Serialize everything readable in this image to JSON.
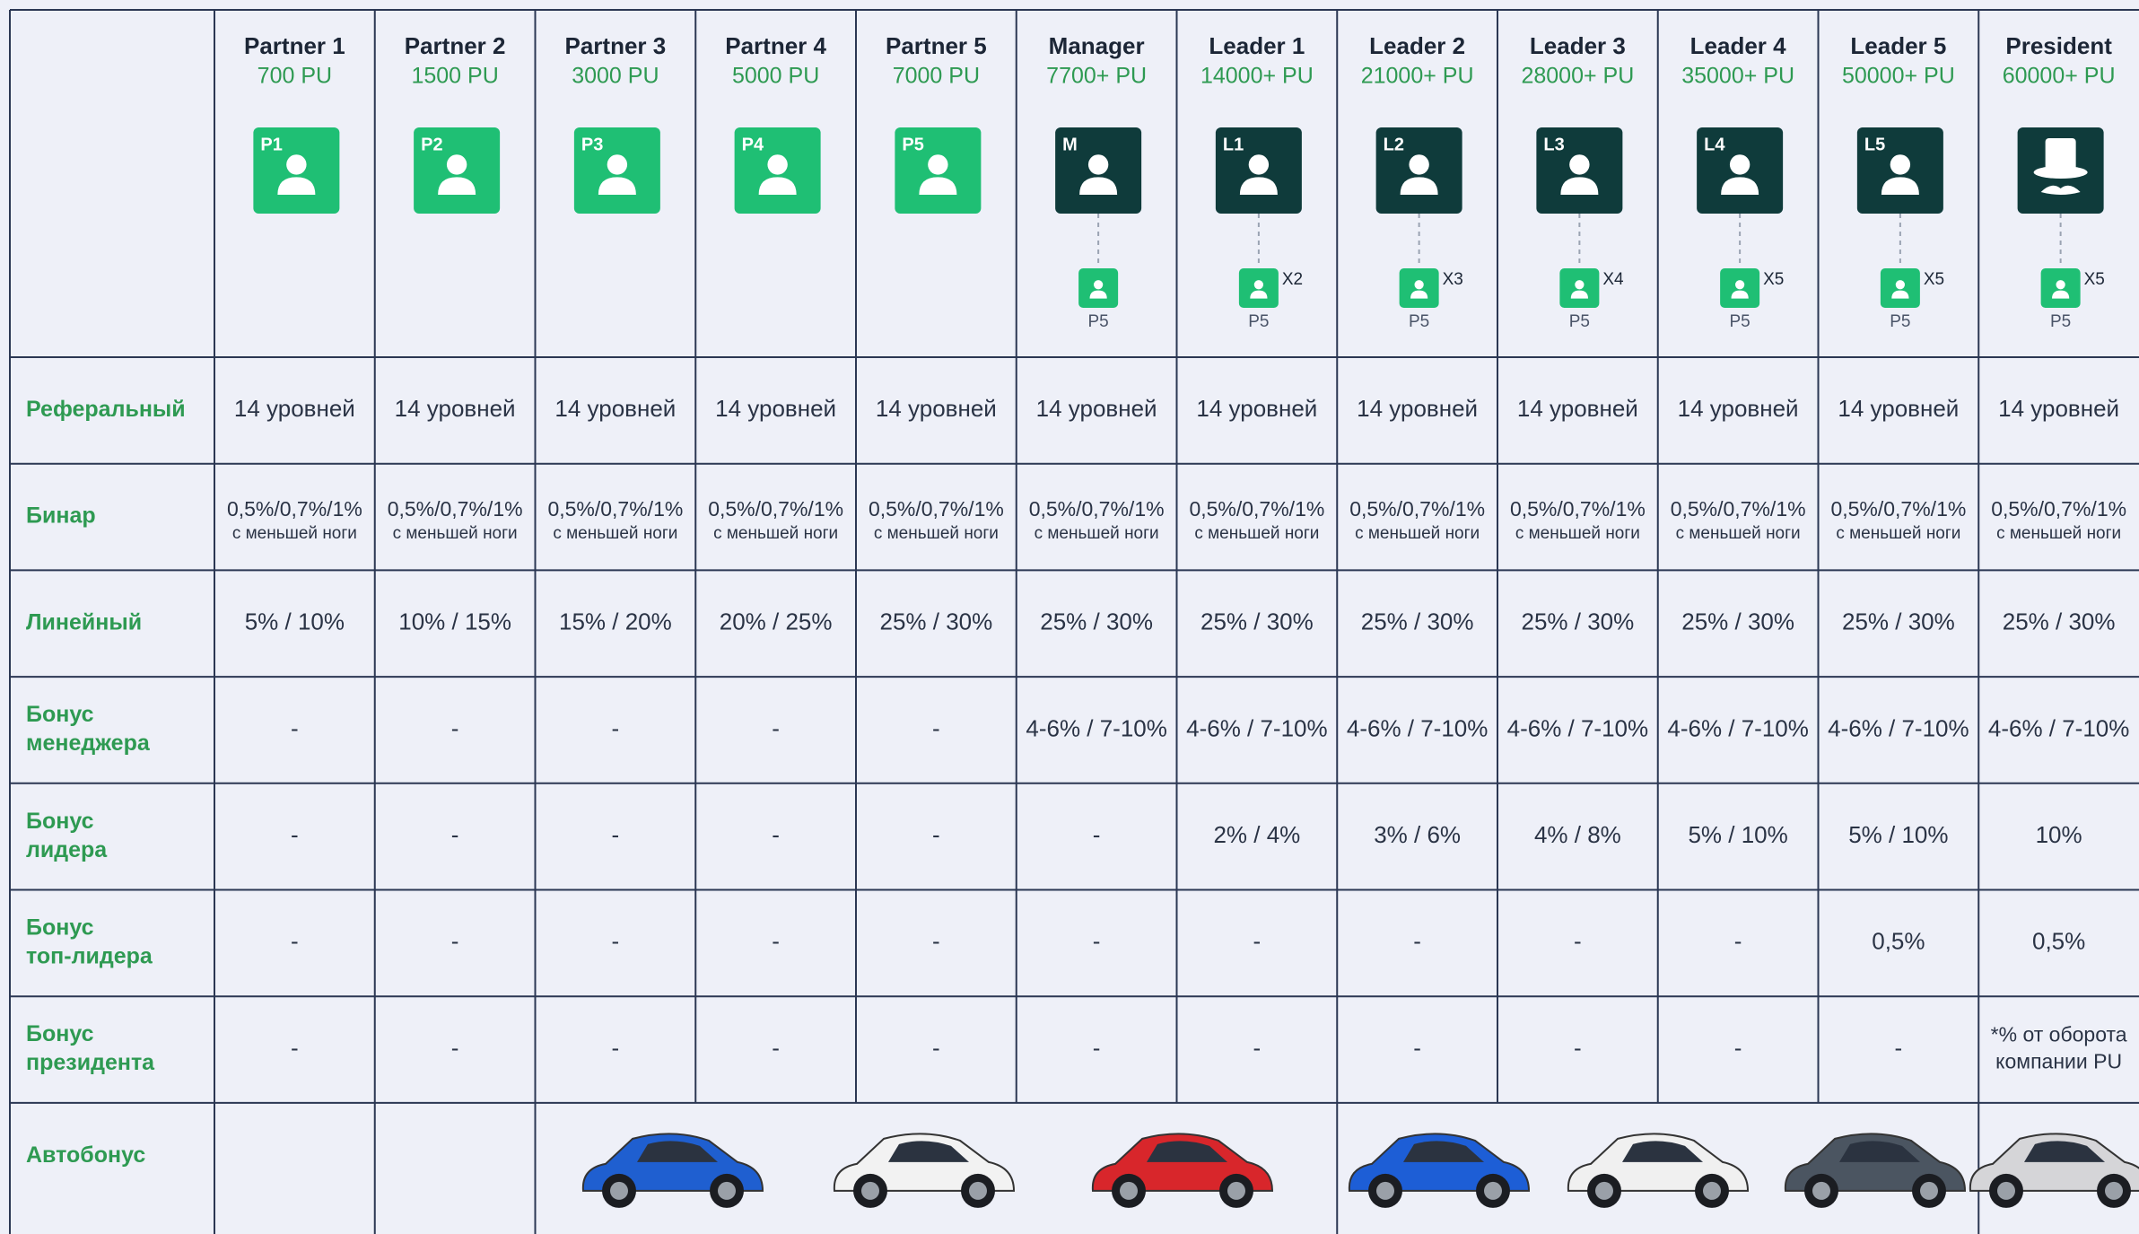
{
  "columns": [
    {
      "name": "Partner 1",
      "pu": "700 PU",
      "badge": "P1"
    },
    {
      "name": "Partner 2",
      "pu": "1500 PU",
      "badge": "P2"
    },
    {
      "name": "Partner 3",
      "pu": "3000 PU",
      "badge": "P3"
    },
    {
      "name": "Partner 4",
      "pu": "5000 PU",
      "badge": "P4"
    },
    {
      "name": "Partner 5",
      "pu": "7000 PU",
      "badge": "P5"
    },
    {
      "name": "Manager",
      "pu": "7700+ PU",
      "badge": "M",
      "sub": "P5"
    },
    {
      "name": "Leader 1",
      "pu": "14000+ PU",
      "badge": "L1",
      "sub": "P5",
      "multiplier": "X2"
    },
    {
      "name": "Leader 2",
      "pu": "21000+ PU",
      "badge": "L2",
      "sub": "P5",
      "multiplier": "X3"
    },
    {
      "name": "Leader 3",
      "pu": "28000+ PU",
      "badge": "L3",
      "sub": "P5",
      "multiplier": "X4"
    },
    {
      "name": "Leader 4",
      "pu": "35000+ PU",
      "badge": "L4",
      "sub": "P5",
      "multiplier": "X5"
    },
    {
      "name": "Leader 5",
      "pu": "50000+ PU",
      "badge": "L5",
      "sub": "P5",
      "multiplier": "X5"
    },
    {
      "name": "President",
      "pu": "60000+ PU",
      "sub": "P5",
      "multiplier": "X5"
    }
  ],
  "rows": [
    {
      "label": [
        "Реферальный"
      ],
      "cells": [
        "14 уровней",
        "14 уровней",
        "14 уровней",
        "14 уровней",
        "14 уровней",
        "14 уровней",
        "14 уровней",
        "14 уровней",
        "14 уровней",
        "14 уровней",
        "14 уровней",
        "14 уровней"
      ]
    },
    {
      "label": [
        "Бинар"
      ],
      "cells": [
        [
          "0,5%/0,7%/1%",
          "с меньшей ноги"
        ],
        [
          "0,5%/0,7%/1%",
          "с меньшей ноги"
        ],
        [
          "0,5%/0,7%/1%",
          "с меньшей ноги"
        ],
        [
          "0,5%/0,7%/1%",
          "с меньшей ноги"
        ],
        [
          "0,5%/0,7%/1%",
          "с меньшей ноги"
        ],
        [
          "0,5%/0,7%/1%",
          "с меньшей ноги"
        ],
        [
          "0,5%/0,7%/1%",
          "с меньшей ноги"
        ],
        [
          "0,5%/0,7%/1%",
          "с меньшей ноги"
        ],
        [
          "0,5%/0,7%/1%",
          "с меньшей ноги"
        ],
        [
          "0,5%/0,7%/1%",
          "с меньшей ноги"
        ],
        [
          "0,5%/0,7%/1%",
          "с меньшей ноги"
        ],
        [
          "0,5%/0,7%/1%",
          "с меньшей ноги"
        ]
      ]
    },
    {
      "label": [
        "Линейный"
      ],
      "cells": [
        "5% / 10%",
        "10% / 15%",
        "15% / 20%",
        "20% / 25%",
        "25% / 30%",
        "25% / 30%",
        "25% / 30%",
        "25% / 30%",
        "25% / 30%",
        "25% / 30%",
        "25% / 30%",
        "25% / 30%"
      ]
    },
    {
      "label": [
        "Бонус",
        "менеджера"
      ],
      "cells": [
        "-",
        "-",
        "-",
        "-",
        "-",
        "4-6% / 7-10%",
        "4-6% / 7-10%",
        "4-6% / 7-10%",
        "4-6% / 7-10%",
        "4-6% / 7-10%",
        "4-6% / 7-10%",
        "4-6% / 7-10%"
      ]
    },
    {
      "label": [
        "Бонус",
        "лидера"
      ],
      "cells": [
        "-",
        "-",
        "-",
        "-",
        "-",
        "-",
        "2% / 4%",
        "3% / 6%",
        "4% / 8%",
        "5% / 10%",
        "5% / 10%",
        "10%"
      ]
    },
    {
      "label": [
        "Бонус",
        "топ-лидера"
      ],
      "cells": [
        "-",
        "-",
        "-",
        "-",
        "-",
        "-",
        "-",
        "-",
        "-",
        "-",
        "0,5%",
        "0,5%"
      ]
    },
    {
      "label": [
        "Бонус",
        "президента"
      ],
      "cells": [
        "-",
        "-",
        "-",
        "-",
        "-",
        "-",
        "-",
        "-",
        "-",
        "-",
        "-",
        [
          "*% от оборота",
          "компании PU"
        ]
      ]
    },
    {
      "label": [
        "Автобонус"
      ]
    }
  ]
}
